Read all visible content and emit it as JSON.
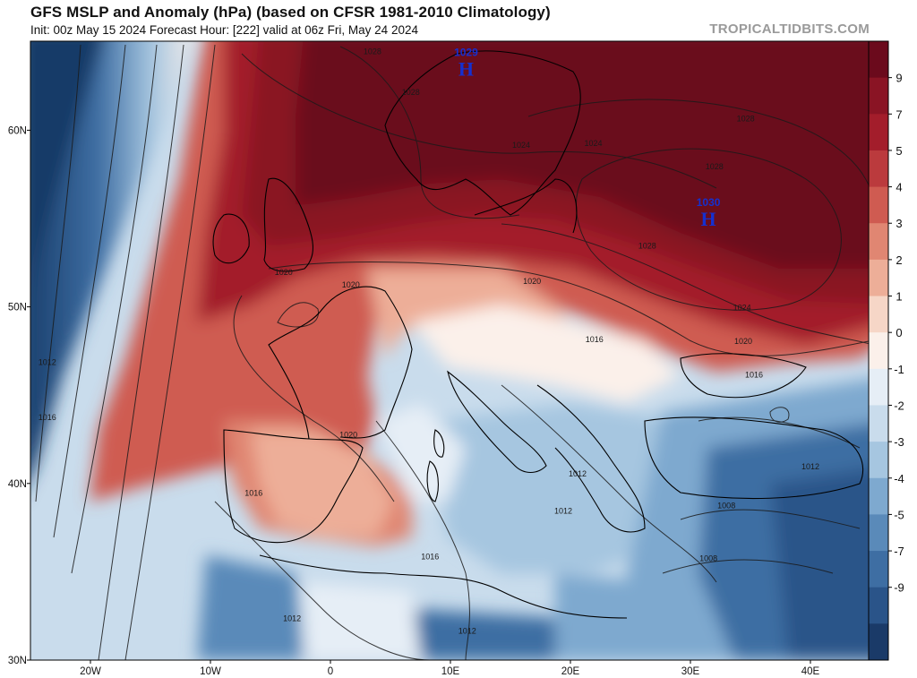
{
  "header": {
    "title": "GFS MSLP and Anomaly (hPa) (based on CFSR 1981-2010 Climatology)",
    "subtitle": "Init: 00z May 15 2024   Forecast Hour: [222]   valid at 06z Fri, May 24 2024",
    "brand": "TROPICALTIDBITS.COM"
  },
  "map": {
    "lat_labels": [
      {
        "text": "60N",
        "lat": 60
      },
      {
        "text": "50N",
        "lat": 50
      },
      {
        "text": "40N",
        "lat": 40
      },
      {
        "text": "30N",
        "lat": 30
      }
    ],
    "lon_labels": [
      {
        "text": "20W",
        "lon": -20
      },
      {
        "text": "10W",
        "lon": -10
      },
      {
        "text": "0",
        "lon": 0
      },
      {
        "text": "10E",
        "lon": 10
      },
      {
        "text": "20E",
        "lon": 20
      },
      {
        "text": "30E",
        "lon": 30
      },
      {
        "text": "40E",
        "lon": 40
      }
    ],
    "pressure_centers": [
      {
        "type": "H",
        "value": "1029",
        "lon": 11.3,
        "lat": 63.5
      },
      {
        "type": "H",
        "value": "1030",
        "lon": 31.5,
        "lat": 55.0
      }
    ],
    "isobar_labels": [
      {
        "text": "1028",
        "lon": 3.5,
        "lat": 64.3
      },
      {
        "text": "1028",
        "lon": 6.7,
        "lat": 62.0
      },
      {
        "text": "1024",
        "lon": 15.9,
        "lat": 59.0
      },
      {
        "text": "1024",
        "lon": 21.9,
        "lat": 59.1
      },
      {
        "text": "1028",
        "lon": 34.6,
        "lat": 60.5
      },
      {
        "text": "1028",
        "lon": 32.0,
        "lat": 57.8
      },
      {
        "text": "1028",
        "lon": 26.4,
        "lat": 53.3
      },
      {
        "text": "1024",
        "lon": 34.3,
        "lat": 49.8
      },
      {
        "text": "1020",
        "lon": 34.4,
        "lat": 47.9
      },
      {
        "text": "1016",
        "lon": 35.3,
        "lat": 46.0
      },
      {
        "text": "1016",
        "lon": 22.0,
        "lat": 48.0
      },
      {
        "text": "1020",
        "lon": 16.8,
        "lat": 51.3
      },
      {
        "text": "1020",
        "lon": 1.7,
        "lat": 51.1
      },
      {
        "text": "1020",
        "lon": -3.9,
        "lat": 51.8
      },
      {
        "text": "1020",
        "lon": 1.5,
        "lat": 42.6
      },
      {
        "text": "1016",
        "lon": -6.4,
        "lat": 39.3
      },
      {
        "text": "1016",
        "lon": 8.3,
        "lat": 35.7
      },
      {
        "text": "1012",
        "lon": 20.6,
        "lat": 40.4
      },
      {
        "text": "1012",
        "lon": 19.4,
        "lat": 38.3
      },
      {
        "text": "1008",
        "lon": 33.0,
        "lat": 38.6
      },
      {
        "text": "1008",
        "lon": 31.5,
        "lat": 35.6
      },
      {
        "text": "1012",
        "lon": 40.0,
        "lat": 40.8
      },
      {
        "text": "1012",
        "lon": -3.2,
        "lat": 32.2
      },
      {
        "text": "1012",
        "lon": 11.4,
        "lat": 31.5
      },
      {
        "text": "1012",
        "lon": -23.6,
        "lat": 46.7
      },
      {
        "text": "1016",
        "lon": -23.6,
        "lat": 43.6
      }
    ]
  },
  "colorbar": {
    "ticks": [
      "9",
      "7",
      "5",
      "4",
      "3",
      "2",
      "1",
      "0",
      "-1",
      "-2",
      "-3",
      "-4",
      "-5",
      "-7",
      "-9"
    ],
    "colors": [
      "#6b0a1c",
      "#8a1424",
      "#a31d2b",
      "#bb3a3d",
      "#cf5b51",
      "#e08672",
      "#edae98",
      "#f6d6c7",
      "#fbf0ea",
      "#e6eef6",
      "#c9dcec",
      "#a6c6e0",
      "#7ea9cf",
      "#5a8ab9",
      "#3e6ea3",
      "#2a5489",
      "#1a3a68"
    ]
  },
  "colors": {
    "center_label": "#1530d0",
    "isobar": "#1a1a1a",
    "coastline": "#000000"
  }
}
